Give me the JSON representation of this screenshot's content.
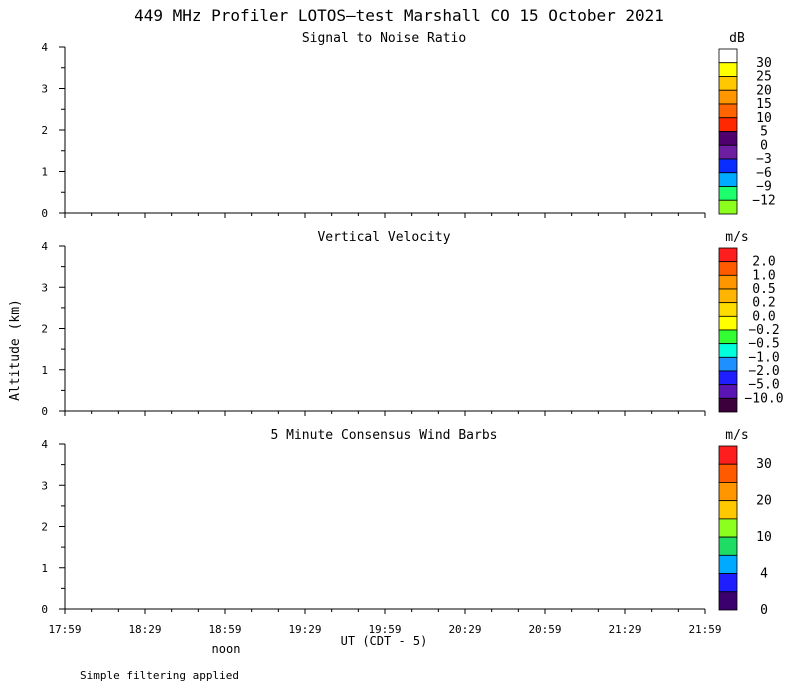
{
  "title": "449 MHz Profiler LOTOS—test Marshall CO 15 October 2021",
  "ylabel": "Altitude (km)",
  "xlabel": "UT  (CDT - 5)",
  "noon_label": "noon",
  "footer": "Simple filtering applied",
  "chart_data": [
    {
      "type": "heatmap",
      "title": "Signal to Noise Ratio",
      "x_ticks": [
        "17:59",
        "18:29",
        "18:59",
        "19:29",
        "19:59",
        "20:29",
        "20:59",
        "21:29",
        "21:59"
      ],
      "y_ticks": [
        "0",
        "1",
        "2",
        "3",
        "4"
      ],
      "ylim": [
        0,
        4
      ],
      "data": [],
      "colorbar": {
        "unit": "dB",
        "labels": [
          "30",
          "25",
          "20",
          "15",
          "10",
          "5",
          "0",
          "−3",
          "−6",
          "−9",
          "−12"
        ],
        "colors": [
          "#ffffff",
          "#ffff00",
          "#ffc800",
          "#ff9600",
          "#ff6400",
          "#ff2800",
          "#50006e",
          "#6e1ea0",
          "#0a2dff",
          "#00aaff",
          "#1eff6e",
          "#8cff1e"
        ]
      }
    },
    {
      "type": "heatmap",
      "title": "Vertical Velocity",
      "x_ticks": [
        "17:59",
        "18:29",
        "18:59",
        "19:29",
        "19:59",
        "20:29",
        "20:59",
        "21:29",
        "21:59"
      ],
      "y_ticks": [
        "0",
        "1",
        "2",
        "3",
        "4"
      ],
      "ylim": [
        0,
        4
      ],
      "data": [],
      "colorbar": {
        "unit": "m/s",
        "labels": [
          "2.0",
          "1.0",
          "0.5",
          "0.2",
          "0.0",
          "−0.2",
          "−0.5",
          "−1.0",
          "−2.0",
          "−5.0",
          "−10.0"
        ],
        "colors": [
          "#ff1e1e",
          "#ff5a00",
          "#ff9600",
          "#ffb400",
          "#ffdc00",
          "#ffff00",
          "#32ff32",
          "#00ffdc",
          "#1e90ff",
          "#1e1eff",
          "#5a14b4",
          "#3c003c"
        ]
      }
    },
    {
      "type": "scatter",
      "title": "5 Minute Consensus Wind Barbs",
      "x_ticks": [
        "17:59",
        "18:29",
        "18:59",
        "19:29",
        "19:59",
        "20:29",
        "20:59",
        "21:29",
        "21:59"
      ],
      "y_ticks": [
        "0",
        "1",
        "2",
        "3",
        "4"
      ],
      "ylim": [
        0,
        4
      ],
      "data": [],
      "colorbar": {
        "unit": "m/s",
        "labels": [
          "30",
          "20",
          "10",
          "4",
          "0"
        ],
        "label_slots": [
          1,
          3,
          5,
          7,
          9
        ],
        "colors": [
          "#ff1e1e",
          "#ff5a00",
          "#ff9600",
          "#ffc800",
          "#8cff1e",
          "#1edc64",
          "#00aaff",
          "#1e1eff",
          "#3c006e"
        ]
      }
    }
  ]
}
